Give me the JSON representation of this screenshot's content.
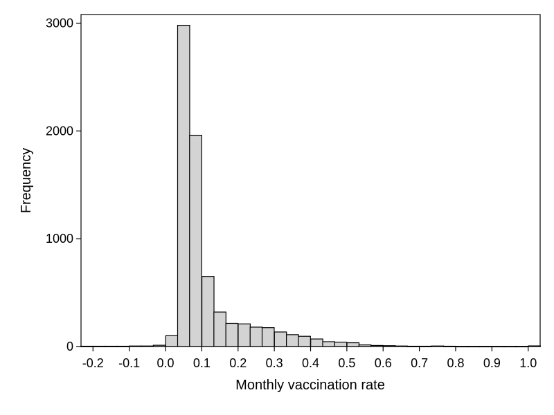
{
  "chart_data": {
    "type": "bar",
    "title": "",
    "xlabel": "Monthly vaccination rate",
    "ylabel": "Frequency",
    "xlim": [
      -0.233,
      1.033
    ],
    "ylim": [
      0,
      3080
    ],
    "grid": false,
    "bar_color": "#d3d3d3",
    "edge_color": "#000000",
    "bin_width": 0.0333,
    "x_ticks": [
      "-0.2",
      "-0.1",
      "0.0",
      "0.1",
      "0.2",
      "0.3",
      "0.4",
      "0.5",
      "0.6",
      "0.7",
      "0.8",
      "0.9",
      "1.0"
    ],
    "y_ticks": [
      "0",
      "1000",
      "2000",
      "3000"
    ],
    "bins": [
      {
        "x": -0.217,
        "count": 3
      },
      {
        "x": -0.183,
        "count": 3
      },
      {
        "x": -0.15,
        "count": 3
      },
      {
        "x": -0.117,
        "count": 3
      },
      {
        "x": -0.083,
        "count": 5
      },
      {
        "x": -0.05,
        "count": 5
      },
      {
        "x": -0.017,
        "count": 12
      },
      {
        "x": 0.017,
        "count": 100
      },
      {
        "x": 0.05,
        "count": 2980
      },
      {
        "x": 0.083,
        "count": 1960
      },
      {
        "x": 0.117,
        "count": 650
      },
      {
        "x": 0.15,
        "count": 320
      },
      {
        "x": 0.183,
        "count": 215
      },
      {
        "x": 0.217,
        "count": 210
      },
      {
        "x": 0.25,
        "count": 180
      },
      {
        "x": 0.283,
        "count": 175
      },
      {
        "x": 0.317,
        "count": 135
      },
      {
        "x": 0.35,
        "count": 110
      },
      {
        "x": 0.383,
        "count": 95
      },
      {
        "x": 0.417,
        "count": 70
      },
      {
        "x": 0.45,
        "count": 45
      },
      {
        "x": 0.483,
        "count": 40
      },
      {
        "x": 0.517,
        "count": 35
      },
      {
        "x": 0.55,
        "count": 15
      },
      {
        "x": 0.583,
        "count": 10
      },
      {
        "x": 0.617,
        "count": 8
      },
      {
        "x": 0.65,
        "count": 5
      },
      {
        "x": 0.683,
        "count": 3
      },
      {
        "x": 0.717,
        "count": 3
      },
      {
        "x": 0.75,
        "count": 5
      },
      {
        "x": 0.783,
        "count": 3
      },
      {
        "x": 0.817,
        "count": 2
      },
      {
        "x": 0.85,
        "count": 2
      },
      {
        "x": 0.883,
        "count": 2
      },
      {
        "x": 0.917,
        "count": 2
      },
      {
        "x": 0.95,
        "count": 2
      },
      {
        "x": 0.983,
        "count": 2
      },
      {
        "x": 1.017,
        "count": 6
      }
    ]
  }
}
